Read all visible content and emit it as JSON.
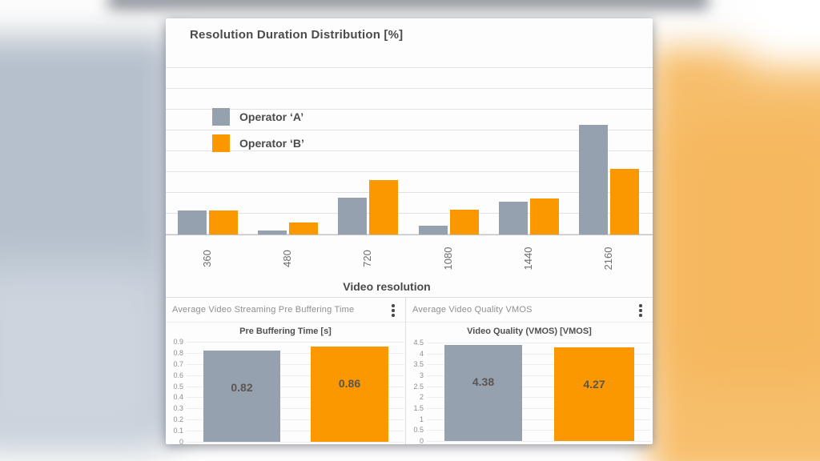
{
  "background": {
    "left_color": "#b6c0cc",
    "right_color": "#f7bf6d",
    "top_band_color": "#8e939b"
  },
  "colors": {
    "operator_a": "#96A1B0",
    "operator_b": "#FB9800",
    "value_label": "#5B5450"
  },
  "dashboard": {
    "main": {
      "title": "Resolution Duration Distribution [%]",
      "xlabel": "Video resolution"
    },
    "panel_left": {
      "header": "Average Video Streaming Pre Buffering Time",
      "menu_icon": "kebab-vertical-dots",
      "subtitle": "Pre Buffering Time [s]"
    },
    "panel_right": {
      "header": "Average Video Quality VMOS",
      "menu_icon": "kebab-vertical-dots",
      "subtitle": "Video Quality (VMOS) [VMOS]"
    }
  },
  "chart_data": [
    {
      "id": "resolution-duration-distribution",
      "type": "bar",
      "title": "Resolution Duration Distribution [%]",
      "xlabel": "Video resolution",
      "ylabel": "",
      "grid": true,
      "legend_position": "inside-top-left",
      "categories": [
        "360",
        "480",
        "720",
        "1080",
        "1440",
        "2160"
      ],
      "series": [
        {
          "name": "Operator ‘A’",
          "color": "#96A1B0",
          "values": [
            5.7,
            0.9,
            8.8,
            2.2,
            7.9,
            26.4
          ]
        },
        {
          "name": "Operator ‘B’",
          "color": "#FB9800",
          "values": [
            5.8,
            2.8,
            13.1,
            6.0,
            8.7,
            15.8
          ]
        }
      ],
      "note": "y-axis unlabeled; values in % estimated from gridlines (one gridline = 5%)"
    },
    {
      "id": "pre-buffering-time",
      "type": "bar",
      "panel_title": "Average Video Streaming Pre Buffering Time",
      "title": "Pre Buffering Time [s]",
      "categories": [
        "Operator ‘A’",
        "Operator ‘B’"
      ],
      "values": [
        0.82,
        0.86
      ],
      "data_labels": [
        "0.82",
        "0.86"
      ],
      "ylim": [
        0,
        0.9
      ],
      "yticks": [
        "0.9",
        "0.8",
        "0.7",
        "0.6",
        "0.5",
        "0.4",
        "0.3",
        "0.2",
        "0.1",
        "0"
      ],
      "grid": true
    },
    {
      "id": "video-quality-vmos",
      "type": "bar",
      "panel_title": "Average Video Quality VMOS",
      "title": "Video Quality (VMOS) [VMOS]",
      "categories": [
        "Operator ‘A’",
        "Operator ‘B’"
      ],
      "values": [
        4.38,
        4.27
      ],
      "data_labels": [
        "4.38",
        "4.27"
      ],
      "ylim": [
        0,
        4.5
      ],
      "yticks": [
        "4.5",
        "4",
        "3.5",
        "3",
        "2.5",
        "2",
        "1.5",
        "1",
        "0.5",
        "0"
      ],
      "grid": true
    }
  ]
}
